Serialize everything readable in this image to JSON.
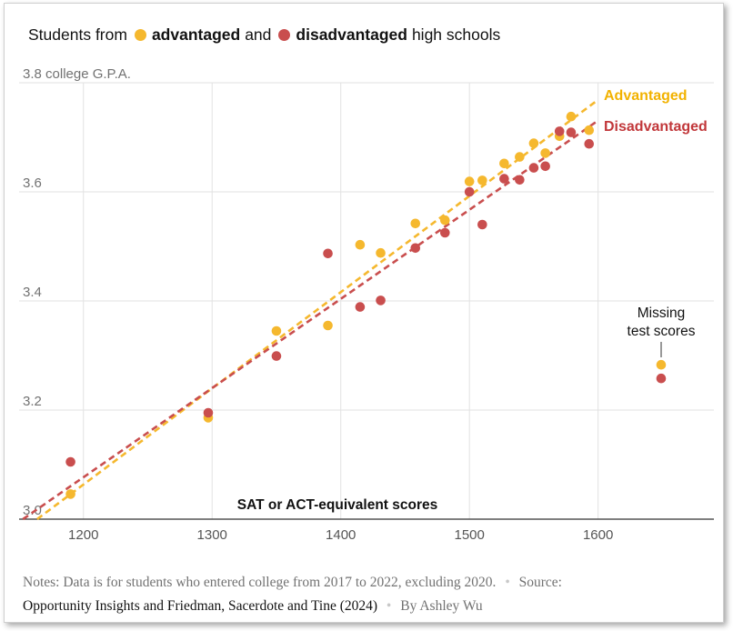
{
  "legend": {
    "prefix": "Students from",
    "advantaged": "advantaged",
    "conjunction": "and",
    "disadvantaged": "disadvantaged",
    "suffix": "high schools"
  },
  "colors": {
    "advantaged": "#f5b82e",
    "disadvantaged": "#c94e4e",
    "advantaged_label": "#f2b200",
    "disadvantaged_label": "#c1373a",
    "grid": "#e2e2e2",
    "axis": "#333333"
  },
  "notes": {
    "notes_label": "Notes:",
    "notes_text": "Data is for students who entered college from 2017 to 2022, excluding 2020.",
    "source_label": "Source:",
    "source_text": "Opportunity Insights and Friedman, Sacerdote and Tine (2024)",
    "byline": "By Ashley Wu"
  },
  "chart_data": {
    "type": "scatter",
    "title": "Students from advantaged and disadvantaged high schools",
    "xlabel": "SAT or ACT-equivalent scores",
    "ylabel": "college G.P.A.",
    "xlim": [
      1150,
      1690
    ],
    "ylim": [
      3.0,
      3.8
    ],
    "x_ticks": [
      1200,
      1300,
      1400,
      1500,
      1600
    ],
    "y_ticks": [
      3.0,
      3.2,
      3.4,
      3.6,
      3.8
    ],
    "y_tick_labels": [
      "3.0",
      "3.2",
      "3.4",
      "3.6",
      "3.8 college G.P.A."
    ],
    "grid": true,
    "series": [
      {
        "name": "Advantaged",
        "color_key": "advantaged",
        "points": [
          {
            "x": 1190,
            "y": 3.046
          },
          {
            "x": 1297,
            "y": 3.186
          },
          {
            "x": 1350,
            "y": 3.345
          },
          {
            "x": 1390,
            "y": 3.355
          },
          {
            "x": 1415,
            "y": 3.503
          },
          {
            "x": 1431,
            "y": 3.488
          },
          {
            "x": 1458,
            "y": 3.542
          },
          {
            "x": 1481,
            "y": 3.548
          },
          {
            "x": 1500,
            "y": 3.619
          },
          {
            "x": 1510,
            "y": 3.621
          },
          {
            "x": 1527,
            "y": 3.652
          },
          {
            "x": 1539,
            "y": 3.664
          },
          {
            "x": 1550,
            "y": 3.689
          },
          {
            "x": 1559,
            "y": 3.671
          },
          {
            "x": 1570,
            "y": 3.702
          },
          {
            "x": 1579,
            "y": 3.738
          },
          {
            "x": 1593,
            "y": 3.713
          }
        ],
        "trend": {
          "x": [
            1164,
            1599
          ],
          "y": [
            3.0,
            3.767
          ]
        }
      },
      {
        "name": "Disadvantaged",
        "color_key": "disadvantaged",
        "points": [
          {
            "x": 1190,
            "y": 3.105
          },
          {
            "x": 1297,
            "y": 3.195
          },
          {
            "x": 1350,
            "y": 3.299
          },
          {
            "x": 1390,
            "y": 3.487
          },
          {
            "x": 1415,
            "y": 3.389
          },
          {
            "x": 1431,
            "y": 3.401
          },
          {
            "x": 1458,
            "y": 3.497
          },
          {
            "x": 1481,
            "y": 3.525
          },
          {
            "x": 1500,
            "y": 3.6
          },
          {
            "x": 1510,
            "y": 3.54
          },
          {
            "x": 1527,
            "y": 3.624
          },
          {
            "x": 1539,
            "y": 3.622
          },
          {
            "x": 1550,
            "y": 3.644
          },
          {
            "x": 1559,
            "y": 3.647
          },
          {
            "x": 1570,
            "y": 3.711
          },
          {
            "x": 1579,
            "y": 3.709
          },
          {
            "x": 1593,
            "y": 3.688
          }
        ],
        "trend": {
          "x": [
            1153,
            1599
          ],
          "y": [
            3.0,
            3.729
          ]
        }
      }
    ],
    "missing_scores": {
      "label_lines": [
        "Missing",
        "test scores"
      ],
      "x": 1649,
      "points": [
        {
          "series": "Advantaged",
          "y": 3.283
        },
        {
          "series": "Disadvantaged",
          "y": 3.258
        }
      ]
    },
    "series_labels": [
      {
        "text": "Advantaged",
        "color_key": "advantaged_label"
      },
      {
        "text": "Disadvantaged",
        "color_key": "disadvantaged_label"
      }
    ]
  }
}
